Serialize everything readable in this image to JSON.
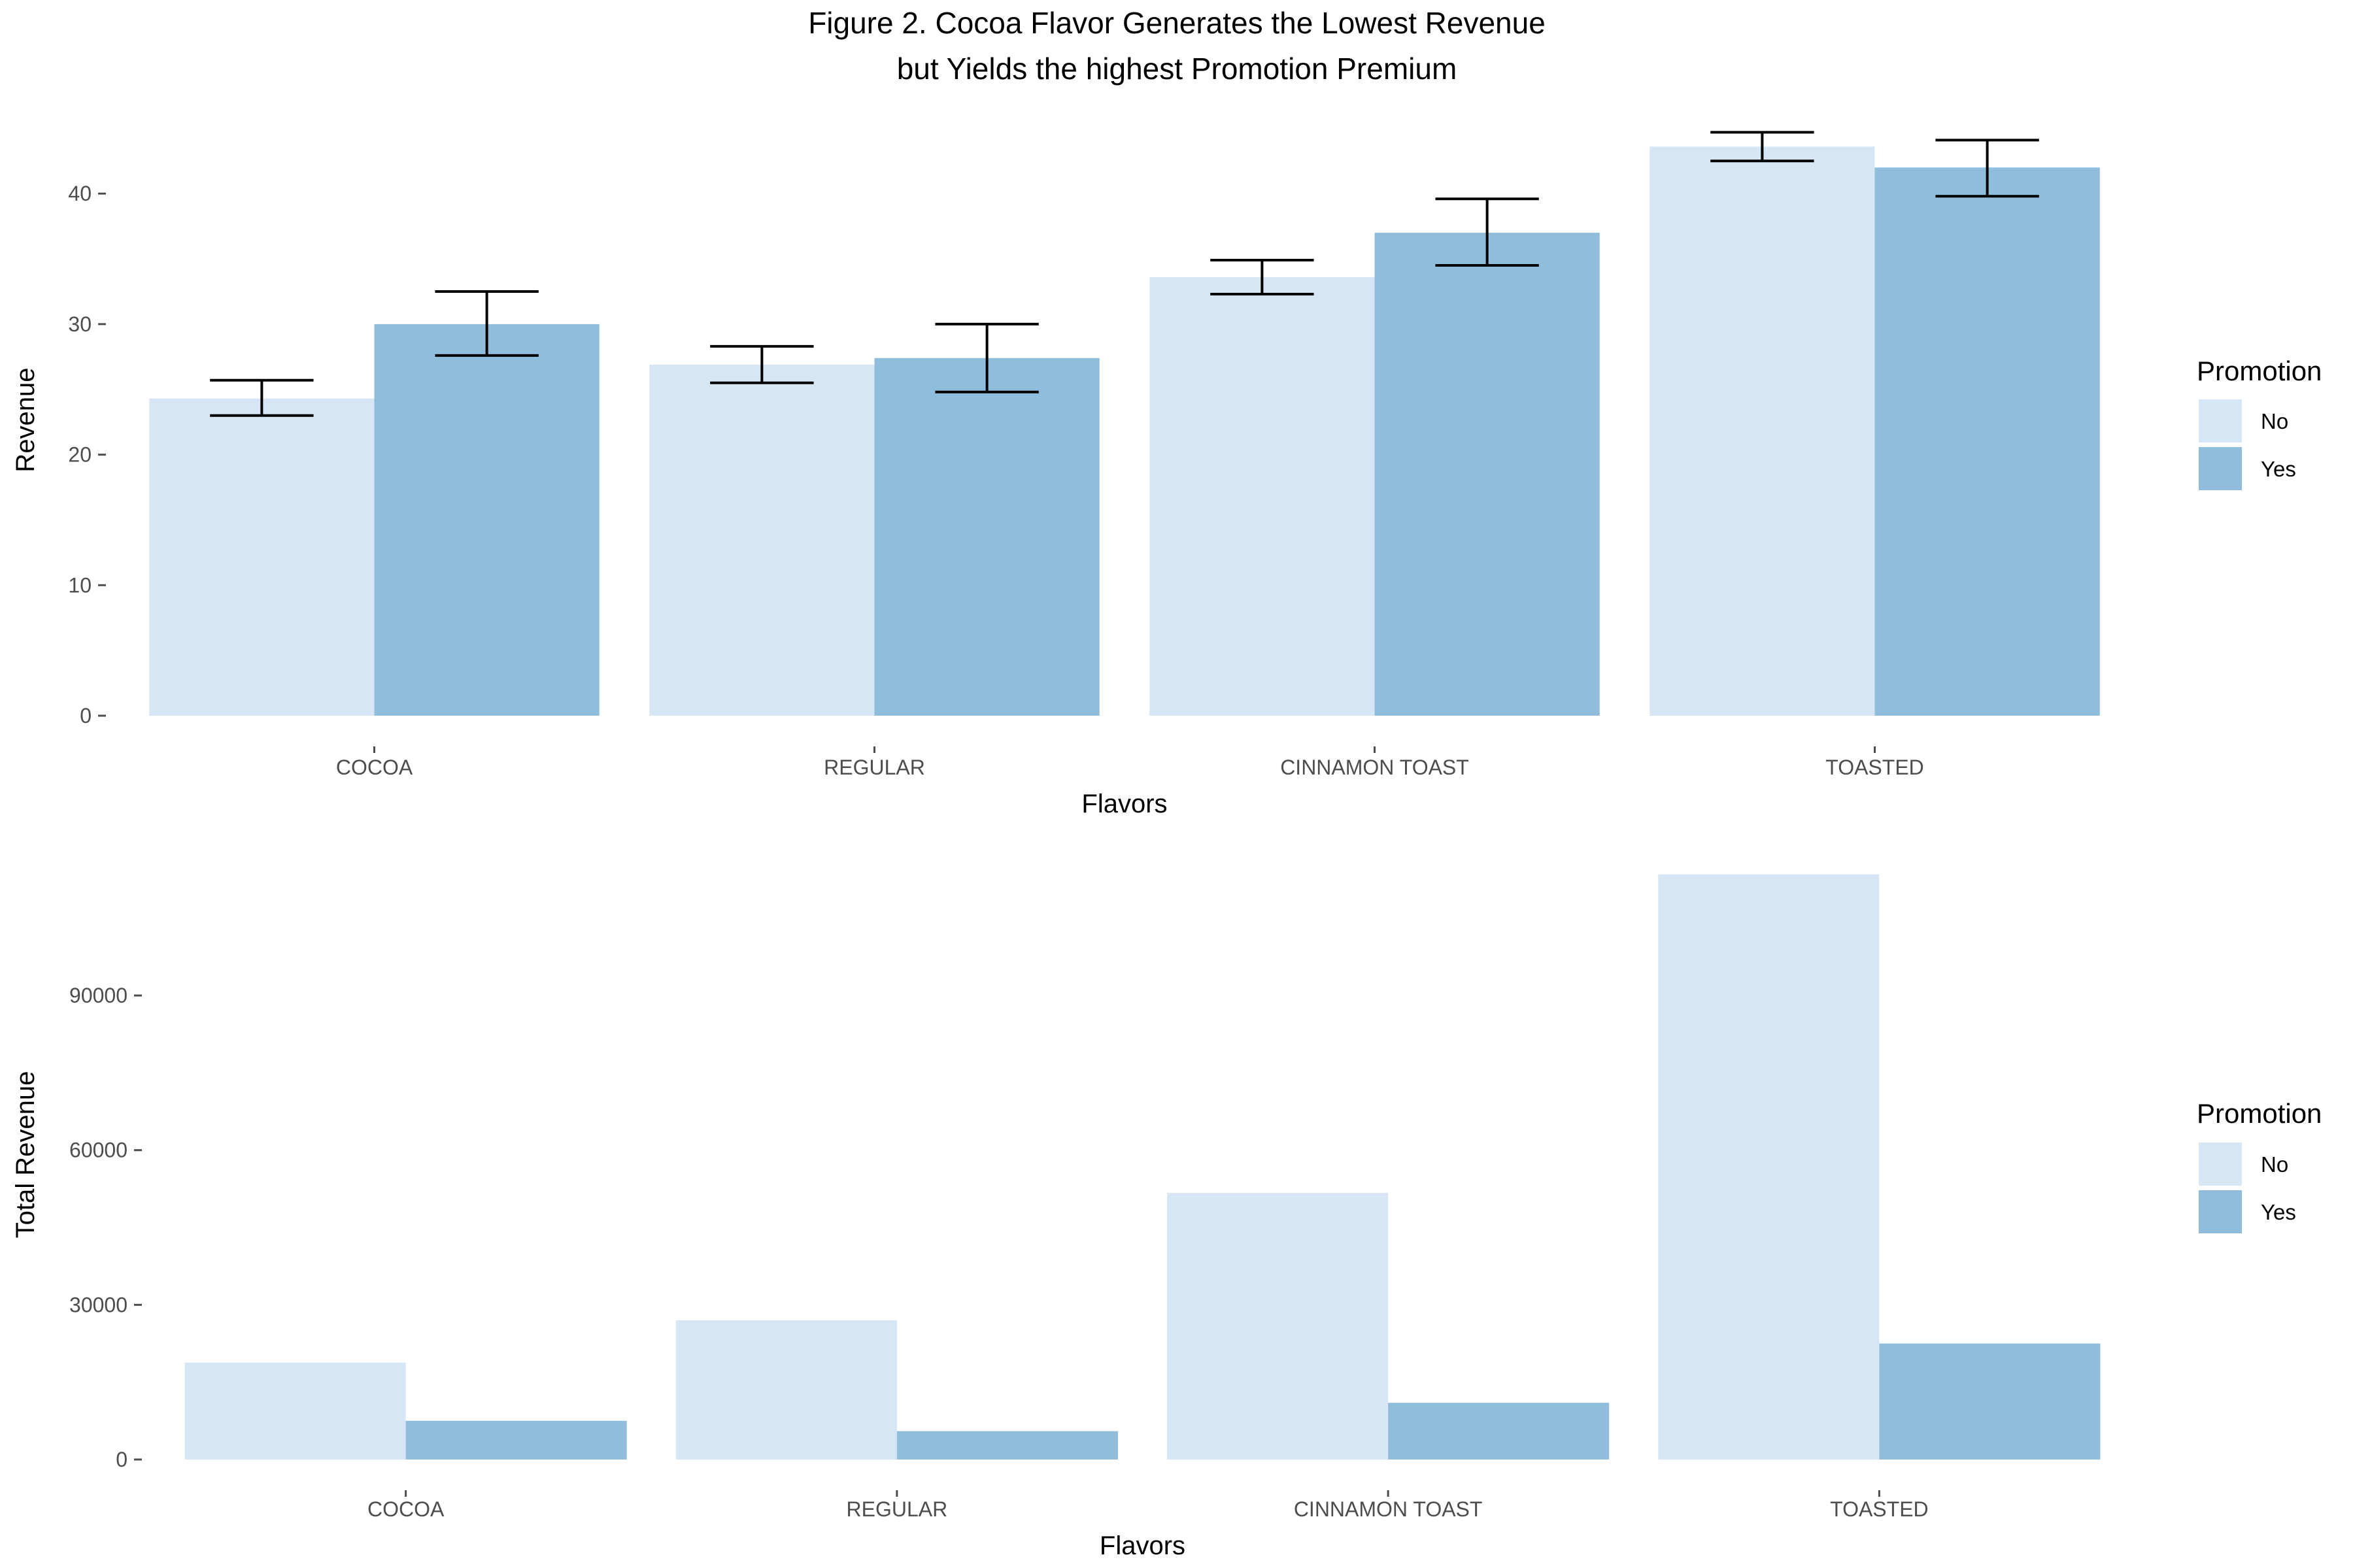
{
  "figure": {
    "title_line1": "Figure 2. Cocoa Flavor Generates the Lowest Revenue",
    "title_line2": "but Yields the highest Promotion Premium"
  },
  "colors": {
    "No": "#d6e6f4",
    "Yes": "#8fbddb",
    "errorbar": "#000000",
    "tick": "#4d4d4d"
  },
  "chart_data": [
    {
      "type": "bar",
      "title": "",
      "xlabel": "Flavors",
      "ylabel": "Revenue",
      "categories": [
        "COCOA",
        "REGULAR",
        "CINNAMON TOAST",
        "TOASTED"
      ],
      "ylim": [
        0,
        45
      ],
      "yticks": [
        0,
        10,
        20,
        30,
        40
      ],
      "grid": false,
      "legend": {
        "title": "Promotion",
        "position": "right",
        "entries": [
          "No",
          "Yes"
        ]
      },
      "series": [
        {
          "name": "No",
          "values": [
            24.3,
            26.9,
            33.6,
            43.6
          ],
          "err_low": [
            23.0,
            25.5,
            32.3,
            42.5
          ],
          "err_high": [
            25.7,
            28.3,
            34.9,
            44.7
          ]
        },
        {
          "name": "Yes",
          "values": [
            30.0,
            27.4,
            37.0,
            42.0
          ],
          "err_low": [
            27.6,
            24.8,
            34.5,
            39.8
          ],
          "err_high": [
            32.5,
            30.0,
            39.6,
            44.1
          ]
        }
      ]
    },
    {
      "type": "bar",
      "title": "",
      "xlabel": "Flavors",
      "ylabel": "Total Revenue",
      "categories": [
        "COCOA",
        "REGULAR",
        "CINNAMON TOAST",
        "TOASTED"
      ],
      "ylim": [
        0,
        115000
      ],
      "yticks": [
        0,
        30000,
        60000,
        90000
      ],
      "grid": false,
      "legend": {
        "title": "Promotion",
        "position": "right",
        "entries": [
          "No",
          "Yes"
        ]
      },
      "series": [
        {
          "name": "No",
          "values": [
            18800,
            27000,
            51700,
            113500
          ]
        },
        {
          "name": "Yes",
          "values": [
            7500,
            5500,
            11000,
            22500
          ]
        }
      ]
    }
  ]
}
